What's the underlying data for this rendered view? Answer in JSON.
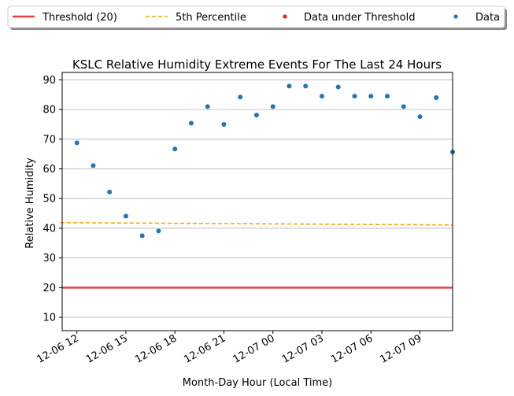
{
  "chart_data": {
    "type": "scatter",
    "title": "KSLC Relative Humidity Extreme Events For The Last 24 Hours",
    "xlabel": "Month-Day Hour (Local Time)",
    "ylabel": "Relative Humidity",
    "x_tick_labels": [
      "12-06 12",
      "12-06 15",
      "12-06 18",
      "12-06 21",
      "12-07 00",
      "12-07 03",
      "12-07 06",
      "12-07 09"
    ],
    "y_ticks": [
      10,
      20,
      30,
      40,
      50,
      60,
      70,
      80,
      90
    ],
    "ylim": [
      5.5,
      92.5
    ],
    "xlim": [
      "12-06 11",
      "12-07 11"
    ],
    "grid": "horizontal",
    "legend_position": "top, above plot",
    "series": [
      {
        "name": "Data",
        "kind": "scatter",
        "color": "#1f77b4",
        "x": [
          "12-06 12",
          "12-06 13",
          "12-06 14",
          "12-06 15",
          "12-06 16",
          "12-06 17",
          "12-06 18",
          "12-06 19",
          "12-06 20",
          "12-06 21",
          "12-06 22",
          "12-06 23",
          "12-07 00",
          "12-07 01",
          "12-07 02",
          "12-07 03",
          "12-07 04",
          "12-07 05",
          "12-07 06",
          "12-07 07",
          "12-07 08",
          "12-07 09",
          "12-07 10",
          "12-07 11"
        ],
        "values": [
          68.8,
          61.1,
          52.2,
          44.1,
          37.5,
          39.1,
          66.7,
          75.4,
          81.0,
          75.0,
          84.2,
          78.1,
          81.0,
          87.9,
          87.9,
          84.5,
          87.6,
          84.5,
          84.5,
          84.5,
          81.0,
          77.6,
          84.0,
          65.7
        ]
      },
      {
        "name": "Data under Threshold",
        "kind": "scatter",
        "color": "#d62728",
        "x": [],
        "values": []
      },
      {
        "name": "Threshold (20)",
        "kind": "hline",
        "color": "#e8403c",
        "value": 20
      },
      {
        "name": "5th Percentile",
        "kind": "dashed-line",
        "color": "#ffa500",
        "x": [
          "12-06 11",
          "12-07 11"
        ],
        "values": [
          41.9,
          41.1
        ]
      }
    ]
  },
  "legend": {
    "items": [
      {
        "label": "Threshold (20)",
        "marker": "line",
        "color": "#e8403c"
      },
      {
        "label": "5th Percentile",
        "marker": "dashed",
        "color": "#ffa500"
      },
      {
        "label": "Data under Threshold",
        "marker": "dot",
        "color": "#d62728"
      },
      {
        "label": "Data",
        "marker": "dot",
        "color": "#1f77b4"
      }
    ]
  }
}
